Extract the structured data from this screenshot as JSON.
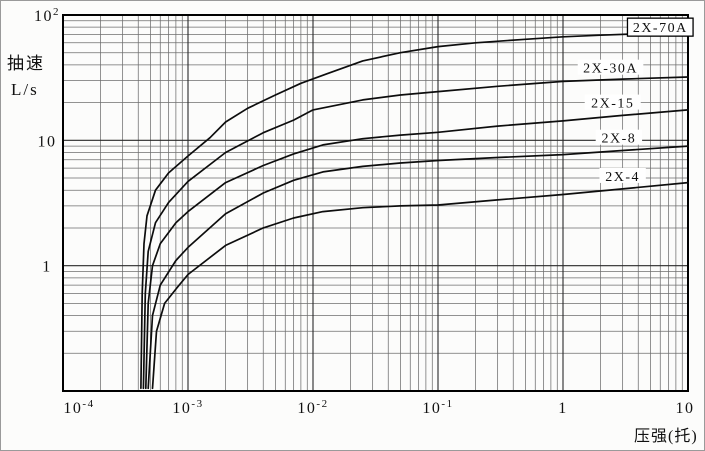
{
  "chart_data": {
    "type": "line",
    "title": "",
    "ylabel_line1": "抽速",
    "ylabel_line2": "L/s",
    "xlabel": "压强(托)",
    "x_axis": {
      "scale": "log",
      "min": 0.0001,
      "max": 10,
      "ticks": [
        {
          "value": 0.0001,
          "base": "10",
          "exp": "-4"
        },
        {
          "value": 0.001,
          "base": "10",
          "exp": "-3"
        },
        {
          "value": 0.01,
          "base": "10",
          "exp": "-2"
        },
        {
          "value": 0.1,
          "base": "10",
          "exp": "-1"
        },
        {
          "value": 1,
          "base": "1",
          "exp": ""
        },
        {
          "value": 10,
          "base": "10",
          "exp": ""
        }
      ]
    },
    "y_axis": {
      "scale": "log",
      "min": 0.1,
      "max": 100,
      "ticks": [
        {
          "value": 100,
          "base": "10",
          "exp": "2"
        },
        {
          "value": 10,
          "base": "10",
          "exp": ""
        },
        {
          "value": 1,
          "base": "1",
          "exp": ""
        }
      ]
    },
    "grid": "full log-log graph paper, minor lines 2-9 each decade",
    "curve_color": "#0d0d0d",
    "series": [
      {
        "name": "2X-70A",
        "boxed": true,
        "label_at": {
          "p": 6.0,
          "s": 80
        },
        "points": [
          [
            0.00042,
            0.105
          ],
          [
            0.00043,
            0.6
          ],
          [
            0.000445,
            1.5
          ],
          [
            0.00047,
            2.5
          ],
          [
            0.00055,
            4.0
          ],
          [
            0.0007,
            5.5
          ],
          [
            0.001,
            7.5
          ],
          [
            0.0015,
            10.5
          ],
          [
            0.002,
            14
          ],
          [
            0.003,
            18
          ],
          [
            0.005,
            23
          ],
          [
            0.008,
            28.5
          ],
          [
            0.013,
            34
          ],
          [
            0.025,
            43
          ],
          [
            0.05,
            50
          ],
          [
            0.1,
            56
          ],
          [
            0.2,
            60
          ],
          [
            0.5,
            64
          ],
          [
            1,
            67
          ],
          [
            2,
            69
          ],
          [
            5,
            71.5
          ],
          [
            10,
            73.5
          ]
        ]
      },
      {
        "name": "2X-30A",
        "boxed": false,
        "label_at": {
          "p": 2.4,
          "s": 38
        },
        "points": [
          [
            0.00044,
            0.105
          ],
          [
            0.000455,
            0.6
          ],
          [
            0.00048,
            1.3
          ],
          [
            0.00055,
            2.2
          ],
          [
            0.0007,
            3.2
          ],
          [
            0.001,
            4.7
          ],
          [
            0.002,
            8
          ],
          [
            0.004,
            11.5
          ],
          [
            0.007,
            14.5
          ],
          [
            0.01,
            17.5
          ],
          [
            0.025,
            21
          ],
          [
            0.05,
            23
          ],
          [
            0.1,
            24.5
          ],
          [
            0.3,
            27
          ],
          [
            1,
            29.5
          ],
          [
            3,
            30.8
          ],
          [
            10,
            32
          ]
        ]
      },
      {
        "name": "2X-15",
        "boxed": false,
        "label_at": {
          "p": 2.5,
          "s": 20
        },
        "points": [
          [
            0.00046,
            0.105
          ],
          [
            0.00048,
            0.5
          ],
          [
            0.00052,
            1.0
          ],
          [
            0.0006,
            1.5
          ],
          [
            0.0008,
            2.2
          ],
          [
            0.001,
            2.7
          ],
          [
            0.002,
            4.6
          ],
          [
            0.004,
            6.3
          ],
          [
            0.007,
            7.8
          ],
          [
            0.012,
            9.2
          ],
          [
            0.025,
            10.3
          ],
          [
            0.05,
            11.0
          ],
          [
            0.1,
            11.6
          ],
          [
            0.3,
            13.0
          ],
          [
            1,
            14.3
          ],
          [
            3,
            15.8
          ],
          [
            10,
            17.5
          ]
        ]
      },
      {
        "name": "2X-8",
        "boxed": false,
        "label_at": {
          "p": 2.8,
          "s": 10.5
        },
        "points": [
          [
            0.00048,
            0.105
          ],
          [
            0.00052,
            0.4
          ],
          [
            0.0006,
            0.7
          ],
          [
            0.0008,
            1.1
          ],
          [
            0.001,
            1.4
          ],
          [
            0.002,
            2.6
          ],
          [
            0.004,
            3.8
          ],
          [
            0.007,
            4.8
          ],
          [
            0.012,
            5.6
          ],
          [
            0.025,
            6.2
          ],
          [
            0.05,
            6.6
          ],
          [
            0.1,
            6.9
          ],
          [
            0.3,
            7.3
          ],
          [
            1,
            7.7
          ],
          [
            3,
            8.3
          ],
          [
            10,
            9.0
          ]
        ]
      },
      {
        "name": "2X-4",
        "boxed": false,
        "label_at": {
          "p": 3.0,
          "s": 5.2
        },
        "points": [
          [
            0.00052,
            0.105
          ],
          [
            0.00056,
            0.3
          ],
          [
            0.00065,
            0.5
          ],
          [
            0.0008,
            0.65
          ],
          [
            0.001,
            0.85
          ],
          [
            0.002,
            1.45
          ],
          [
            0.004,
            2.0
          ],
          [
            0.007,
            2.4
          ],
          [
            0.012,
            2.7
          ],
          [
            0.025,
            2.9
          ],
          [
            0.05,
            3.0
          ],
          [
            0.1,
            3.05
          ],
          [
            0.3,
            3.35
          ],
          [
            1,
            3.7
          ],
          [
            3,
            4.1
          ],
          [
            10,
            4.6
          ]
        ]
      }
    ]
  },
  "colors": {
    "background": "#fcfcfb",
    "frame": "#000000",
    "grid_major": "#2a2a2a",
    "grid_minor": "#6e6e6e",
    "curve": "#0d0d0d",
    "label_box_bg": "#ffffff"
  }
}
